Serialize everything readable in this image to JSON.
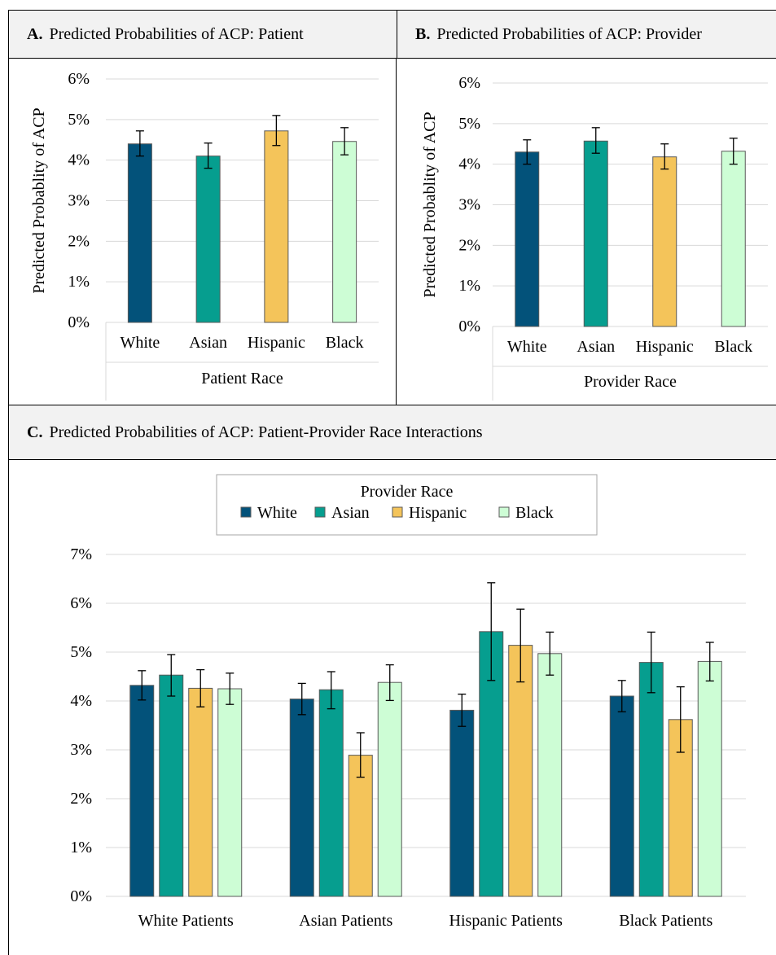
{
  "colors": {
    "White": "#03527a",
    "Asian": "#069e8f",
    "Hispanic": "#f4c45a",
    "Black": "#cdfdd5",
    "grid": "#d9d9d9",
    "header_bg": "#f2f2f2"
  },
  "panels": {
    "a": {
      "letter": "A.",
      "title": "Predicted Probabilities of ACP: Patient",
      "chart_data": {
        "type": "bar",
        "title": "",
        "categories": [
          "White",
          "Asian",
          "Hispanic",
          "Black"
        ],
        "values": [
          4.4,
          4.1,
          4.72,
          4.46
        ],
        "error_low": [
          4.1,
          3.8,
          4.36,
          4.13
        ],
        "error_high": [
          4.72,
          4.42,
          5.1,
          4.8
        ],
        "colors": [
          "#03527a",
          "#069e8f",
          "#f4c45a",
          "#cdfdd5"
        ],
        "xlabel": "Patient Race",
        "ylabel": "Predicted Probablity of ACP",
        "ylim": [
          0,
          6
        ],
        "yticks": [
          "0%",
          "1%",
          "2%",
          "3%",
          "4%",
          "5%",
          "6%"
        ],
        "grid": true,
        "legend": "none"
      }
    },
    "b": {
      "letter": "B.",
      "title": "Predicted Probabilities of ACP: Provider",
      "chart_data": {
        "type": "bar",
        "title": "",
        "categories": [
          "White",
          "Asian",
          "Hispanic",
          "Black"
        ],
        "values": [
          4.3,
          4.57,
          4.18,
          4.32
        ],
        "error_low": [
          4.0,
          4.27,
          3.88,
          4.0
        ],
        "error_high": [
          4.6,
          4.9,
          4.5,
          4.64
        ],
        "colors": [
          "#03527a",
          "#069e8f",
          "#f4c45a",
          "#cdfdd5"
        ],
        "xlabel": "Provider Race",
        "ylabel": "Predicted Probablity of ACP",
        "ylim": [
          0,
          6
        ],
        "yticks": [
          "0%",
          "1%",
          "2%",
          "3%",
          "4%",
          "5%",
          "6%"
        ],
        "grid": true,
        "legend": "none"
      }
    },
    "c": {
      "letter": "C.",
      "title": "Predicted Probabilities of ACP: Patient-Provider Race Interactions",
      "chart_data": {
        "type": "bar",
        "title": "",
        "categories": [
          "White Patients",
          "Asian Patients",
          "Hispanic Patients",
          "Black Patients"
        ],
        "legend_title": "Provider Race",
        "legend": "top-center",
        "ylim": [
          0,
          7
        ],
        "yticks": [
          "0%",
          "1%",
          "2%",
          "3%",
          "4%",
          "5%",
          "6%",
          "7%"
        ],
        "grid": true,
        "xlabel": "",
        "ylabel": "",
        "series": [
          {
            "name": "White",
            "color": "#03527a",
            "values": [
              4.32,
              4.04,
              3.81,
              4.1
            ],
            "error_low": [
              4.02,
              3.72,
              3.48,
              3.78
            ],
            "error_high": [
              4.62,
              4.36,
              4.14,
              4.42
            ]
          },
          {
            "name": "Asian",
            "color": "#069e8f",
            "values": [
              4.53,
              4.23,
              5.42,
              4.79
            ],
            "error_low": [
              4.1,
              3.84,
              4.42,
              4.17
            ],
            "error_high": [
              4.95,
              4.6,
              6.42,
              5.41
            ]
          },
          {
            "name": "Hispanic",
            "color": "#f4c45a",
            "values": [
              4.26,
              2.89,
              5.14,
              3.62
            ],
            "error_low": [
              3.88,
              2.44,
              4.39,
              2.95
            ],
            "error_high": [
              4.64,
              3.35,
              5.88,
              4.29
            ]
          },
          {
            "name": "Black",
            "color": "#cdfdd5",
            "values": [
              4.25,
              4.38,
              4.97,
              4.81
            ],
            "error_low": [
              3.93,
              4.01,
              4.53,
              4.41
            ],
            "error_high": [
              4.57,
              4.74,
              5.41,
              5.2
            ]
          }
        ]
      }
    }
  }
}
